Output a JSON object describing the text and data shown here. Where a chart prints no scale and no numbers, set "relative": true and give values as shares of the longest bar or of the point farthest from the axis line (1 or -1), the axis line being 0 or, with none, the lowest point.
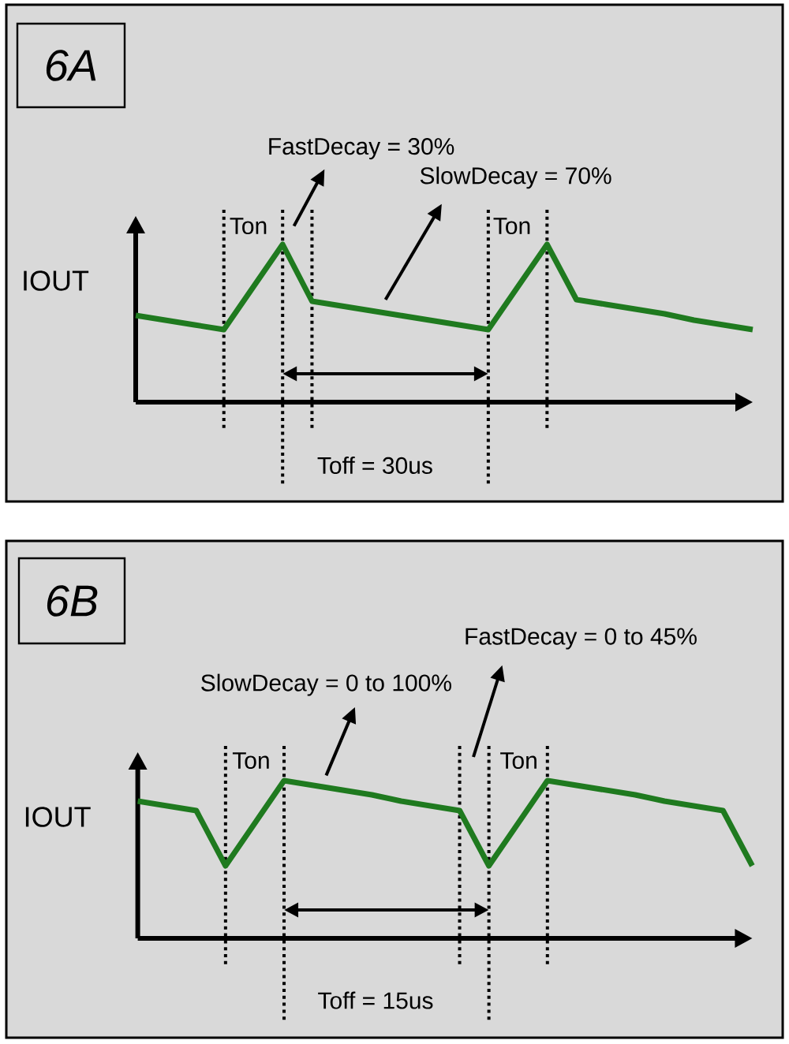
{
  "chart_data": [
    {
      "type": "line",
      "title": "6A",
      "ylabel": "IOUT",
      "relative": true,
      "grid": "x",
      "categories": [
        null,
        null,
        null,
        null,
        null,
        null,
        null,
        null,
        null,
        null,
        null,
        null,
        null,
        null,
        null,
        null,
        null,
        null,
        null,
        null,
        null,
        null
      ],
      "series": [
        {
          "color": "#1f7a1f",
          "values": [
            0.55,
            0.52,
            0.49,
            0.46,
            0.73,
            1,
            0.64,
            0.61,
            0.58,
            0.55,
            0.52,
            0.49,
            0.46,
            0.73,
            1,
            0.65,
            0.62,
            0.59,
            0.56,
            0.52,
            0.49,
            0.46
          ]
        }
      ],
      "annotations": [
        "FastDecay = 30%",
        "SlowDecay = 70%",
        "Ton",
        "Ton",
        "Toff = 30us"
      ]
    },
    {
      "type": "line",
      "title": "6B",
      "ylabel": "IOUT",
      "relative": true,
      "grid": "x",
      "categories": [
        null,
        null,
        null,
        null,
        null,
        null,
        null,
        null,
        null,
        null,
        null,
        null,
        null,
        null,
        null,
        null,
        null,
        null,
        null,
        null,
        null,
        null
      ],
      "series": [
        {
          "color": "#1f7a1f",
          "values": [
            0.87,
            0.84,
            0.81,
            0.46,
            0.73,
            1,
            0.97,
            0.94,
            0.91,
            0.87,
            0.84,
            0.81,
            0.46,
            0.73,
            1,
            0.97,
            0.94,
            0.91,
            0.87,
            0.84,
            0.81,
            0.46
          ]
        }
      ],
      "annotations": [
        "FastDecay = 0 to 45%",
        "SlowDecay = 0 to 100%",
        "Ton",
        "Ton",
        "Toff = 15us"
      ]
    }
  ]
}
